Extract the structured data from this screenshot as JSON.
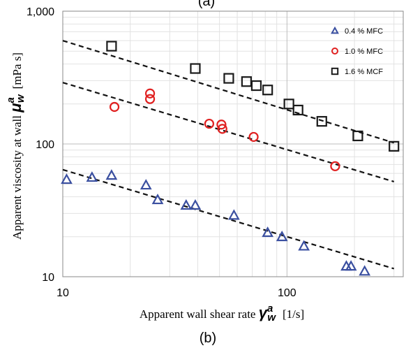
{
  "top_label": "(a)",
  "panel_label": "(b)",
  "chart_data": {
    "type": "scatter",
    "x_scale": "log",
    "y_scale": "log",
    "xlim": [
      10,
      330
    ],
    "ylim": [
      10,
      1000
    ],
    "x_ticks": [
      {
        "value": 10,
        "label": "10"
      },
      {
        "value": 100,
        "label": "100"
      }
    ],
    "y_ticks": [
      {
        "value": 10,
        "label": "10"
      },
      {
        "value": 100,
        "label": "100"
      },
      {
        "value": 1000,
        "label": "1,000"
      }
    ],
    "grid": true,
    "legend_position": "top-right",
    "xlabel": {
      "prefix": "Apparent wall shear rate ",
      "symbol": "γ",
      "superscript": "a",
      "subscript": "w",
      "suffix": "[1/s]"
    },
    "ylabel": {
      "prefix": "Apparent viscosity at wall ",
      "symbol": "μ",
      "superscript": "a",
      "subscript": "w",
      "suffix": "[mPa s]"
    },
    "series": [
      {
        "name": "0.4 % MFC",
        "marker": "triangle",
        "color": "#3a4fa0",
        "points": [
          {
            "x": 10.4,
            "y": 54
          },
          {
            "x": 13.5,
            "y": 56
          },
          {
            "x": 16.5,
            "y": 58
          },
          {
            "x": 23.5,
            "y": 49
          },
          {
            "x": 26.5,
            "y": 38
          },
          {
            "x": 35.5,
            "y": 34.5
          },
          {
            "x": 39,
            "y": 34.5
          },
          {
            "x": 58,
            "y": 29
          },
          {
            "x": 82,
            "y": 21.5
          },
          {
            "x": 95,
            "y": 20
          },
          {
            "x": 119,
            "y": 17
          },
          {
            "x": 184,
            "y": 12
          },
          {
            "x": 193,
            "y": 12
          },
          {
            "x": 222,
            "y": 11
          }
        ],
        "trend": {
          "from": [
            10,
            64
          ],
          "to": [
            300,
            11.5
          ]
        }
      },
      {
        "name": "1.0 % MFC",
        "marker": "circle",
        "color": "#e02020",
        "points": [
          {
            "x": 17,
            "y": 190
          },
          {
            "x": 24.5,
            "y": 240
          },
          {
            "x": 24.5,
            "y": 218
          },
          {
            "x": 45,
            "y": 142
          },
          {
            "x": 51,
            "y": 140
          },
          {
            "x": 51.5,
            "y": 130
          },
          {
            "x": 71,
            "y": 113
          },
          {
            "x": 164,
            "y": 68
          }
        ],
        "trend": {
          "from": [
            10,
            290
          ],
          "to": [
            300,
            52
          ]
        }
      },
      {
        "name": "1.6 % MCF",
        "marker": "square",
        "color": "#1a1a1a",
        "points": [
          {
            "x": 16.5,
            "y": 545
          },
          {
            "x": 39,
            "y": 370
          },
          {
            "x": 55,
            "y": 312
          },
          {
            "x": 66,
            "y": 295
          },
          {
            "x": 73,
            "y": 275
          },
          {
            "x": 82,
            "y": 255
          },
          {
            "x": 102,
            "y": 200
          },
          {
            "x": 112,
            "y": 180
          },
          {
            "x": 143,
            "y": 148
          },
          {
            "x": 207,
            "y": 115
          },
          {
            "x": 300,
            "y": 96
          }
        ],
        "trend": {
          "from": [
            10,
            600
          ],
          "to": [
            300,
            102
          ]
        }
      }
    ]
  }
}
